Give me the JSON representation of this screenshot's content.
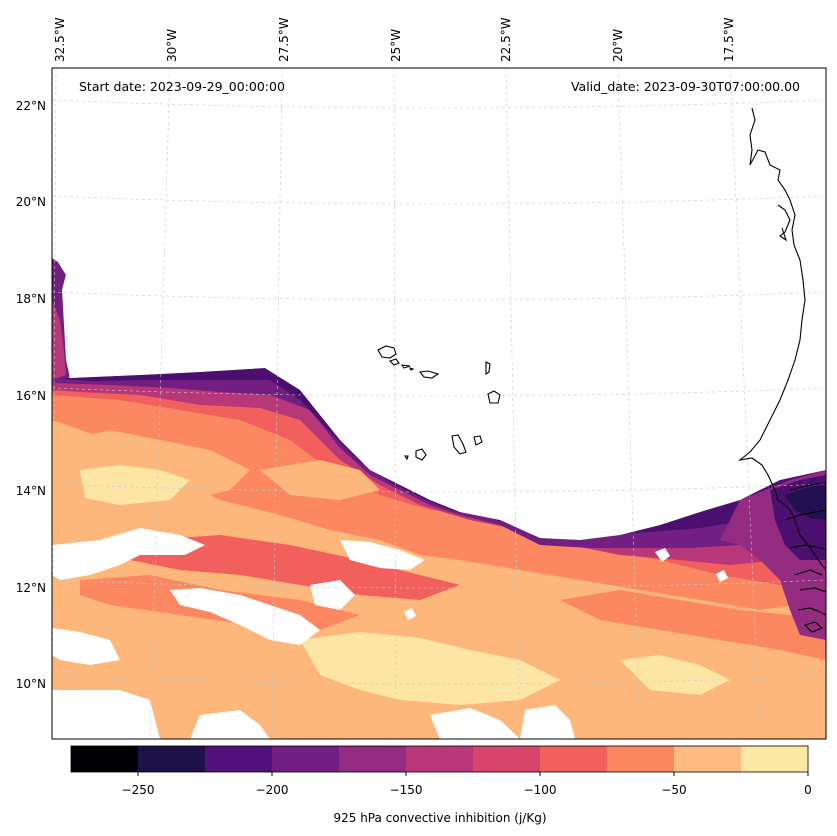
{
  "map": {
    "start_date_label": "Start date: 2023-09-29_00:00:00",
    "valid_date_label": "Valid_date: 2023-09-30T07:00:00.00",
    "lon_ticks": [
      "32.5°W",
      "30°W",
      "27.5°W",
      "25°W",
      "22.5°W",
      "20°W",
      "17.5°W"
    ],
    "lat_ticks": [
      "22°N",
      "20°N",
      "18°N",
      "16°N",
      "14°N",
      "12°N",
      "10°N"
    ],
    "field_palette": [
      "#0b0924",
      "#221150",
      "#4b0f70",
      "#721f81",
      "#932b80",
      "#b83779",
      "#d8456c",
      "#f1605d",
      "#fb8861",
      "#fdb77a",
      "#fde6a5"
    ]
  },
  "colorbar": {
    "label": "925 hPa convective inhibition (j/Kg)",
    "ticks": [
      "−250",
      "−200",
      "−150",
      "−100",
      "−50",
      "0"
    ],
    "colors": [
      "#000004",
      "#1d1147",
      "#51127c",
      "#721f81",
      "#932b80",
      "#b73779",
      "#d8456c",
      "#f1605d",
      "#fb8861",
      "#febb81",
      "#fce9a6"
    ],
    "levels": [
      -275,
      -250,
      -225,
      -200,
      -175,
      -150,
      -125,
      -100,
      -75,
      -50,
      -25,
      0
    ]
  }
}
